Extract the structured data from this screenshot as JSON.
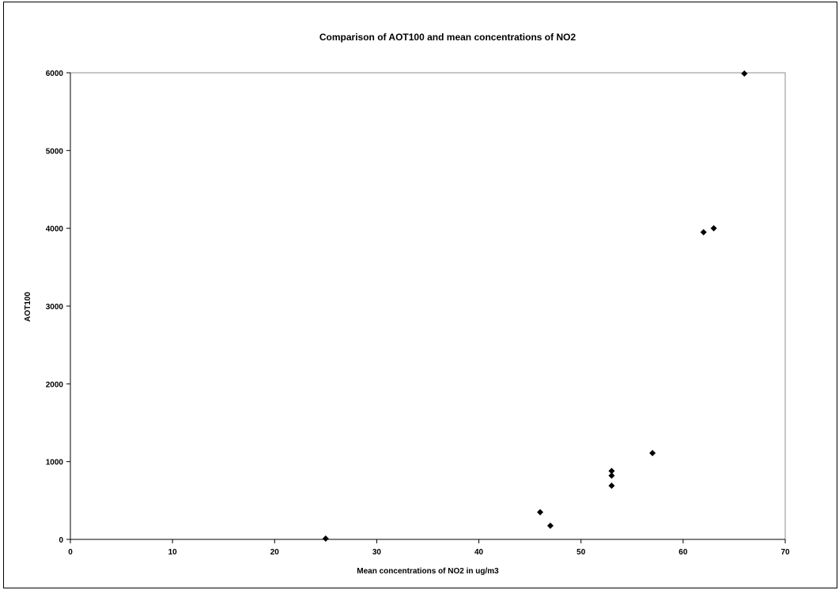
{
  "chart_data": {
    "type": "scatter",
    "title": "Comparison of AOT100 and mean concentrations of NO2",
    "xlabel": "Mean concentrations of NO2 in ug/m3",
    "ylabel": "AOT100",
    "xlim": [
      0,
      70
    ],
    "ylim": [
      0,
      6000
    ],
    "x_ticks": [
      "0",
      "10",
      "20",
      "30",
      "40",
      "50",
      "60",
      "70"
    ],
    "y_ticks": [
      "0",
      "1000",
      "2000",
      "3000",
      "4000",
      "5000",
      "6000"
    ],
    "grid": false,
    "legend": "none",
    "marker": "diamond",
    "marker_color": "#000000",
    "points": [
      {
        "x": 25,
        "y": 10
      },
      {
        "x": 46,
        "y": 350
      },
      {
        "x": 47,
        "y": 175
      },
      {
        "x": 53,
        "y": 880
      },
      {
        "x": 53,
        "y": 820
      },
      {
        "x": 53,
        "y": 690
      },
      {
        "x": 57,
        "y": 1110
      },
      {
        "x": 62,
        "y": 3950
      },
      {
        "x": 63,
        "y": 4000
      },
      {
        "x": 66,
        "y": 5990
      }
    ]
  }
}
